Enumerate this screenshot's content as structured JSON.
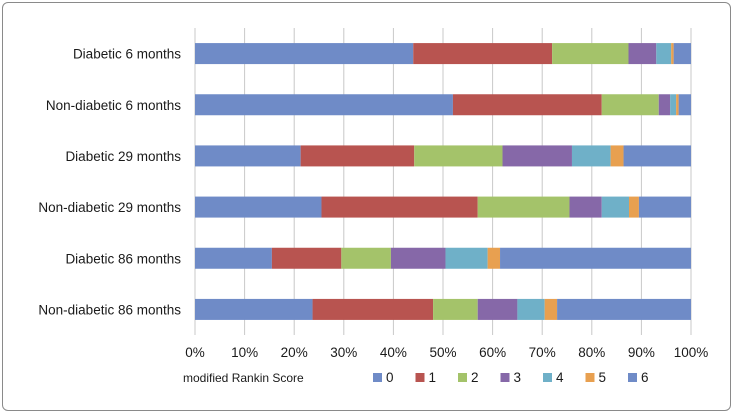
{
  "chart_data": {
    "type": "bar",
    "orientation": "horizontal",
    "stacked": true,
    "percent": true,
    "categories": [
      "Diabetic 6 months",
      "Non-diabetic 6 months",
      "Diabetic 29 months",
      "Non-diabetic 29 months",
      "Diabetic 86 months",
      "Non-diabetic 86 months"
    ],
    "series": [
      {
        "name": "0",
        "color": "#6f8bc7",
        "values": [
          44.0,
          52.0,
          21.3,
          25.5,
          15.5,
          23.7
        ]
      },
      {
        "name": "1",
        "color": "#b85450",
        "values": [
          28.0,
          30.0,
          22.9,
          31.5,
          14.0,
          24.3
        ]
      },
      {
        "name": "2",
        "color": "#a4c36a",
        "values": [
          15.4,
          11.5,
          17.8,
          18.5,
          10.0,
          9.0
        ]
      },
      {
        "name": "3",
        "color": "#8668a8",
        "values": [
          5.6,
          2.3,
          14.0,
          6.5,
          11.0,
          8.0
        ]
      },
      {
        "name": "4",
        "color": "#6fb0c8",
        "values": [
          3.0,
          1.2,
          7.8,
          5.5,
          8.5,
          5.5
        ]
      },
      {
        "name": "5",
        "color": "#e8a050",
        "values": [
          0.5,
          0.5,
          2.6,
          2.0,
          2.5,
          2.5
        ]
      },
      {
        "name": "6",
        "color": "#6f8bc7",
        "values": [
          3.5,
          2.5,
          13.6,
          10.5,
          38.5,
          27.0
        ]
      }
    ],
    "xlim": [
      0,
      100
    ],
    "xticks": [
      "0%",
      "10%",
      "20%",
      "30%",
      "40%",
      "50%",
      "60%",
      "70%",
      "80%",
      "90%",
      "100%"
    ],
    "xlabel": "modified Rankin Score",
    "grid": "vertical",
    "legend": "bottom"
  }
}
